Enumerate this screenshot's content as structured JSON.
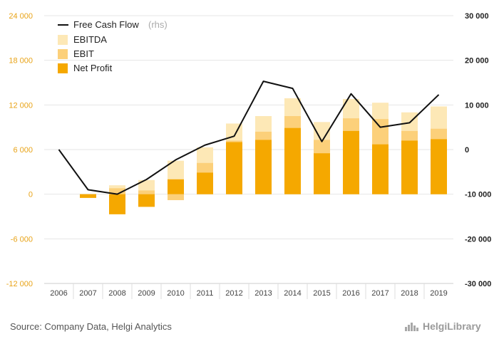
{
  "chart_data": {
    "type": "bar",
    "categories": [
      "2006",
      "2007",
      "2008",
      "2009",
      "2010",
      "2011",
      "2012",
      "2013",
      "2014",
      "2015",
      "2016",
      "2017",
      "2018",
      "2019"
    ],
    "series": [
      {
        "name": "EBITDA",
        "kind": "bar",
        "axis": "left",
        "color": "#fde8b6",
        "values": [
          null,
          -400,
          1200,
          1900,
          4500,
          6300,
          9500,
          10500,
          12900,
          9700,
          12800,
          12300,
          11000,
          11800
        ]
      },
      {
        "name": "EBIT",
        "kind": "bar",
        "axis": "left",
        "color": "#fcd07a",
        "values": [
          null,
          -450,
          800,
          500,
          -800,
          4200,
          7200,
          8400,
          10500,
          7300,
          10200,
          10100,
          8500,
          8800
        ]
      },
      {
        "name": "Net Profit",
        "kind": "bar",
        "axis": "left",
        "color": "#f5a800",
        "values": [
          null,
          -500,
          -2700,
          -1700,
          2000,
          2900,
          7000,
          7300,
          8900,
          5500,
          8500,
          6700,
          7200,
          7400
        ]
      },
      {
        "name": "Free Cash Flow",
        "kind": "line",
        "axis": "right",
        "color": "#111111",
        "values": [
          0,
          -9000,
          -10000,
          -6700,
          -2300,
          1000,
          3000,
          15300,
          13700,
          1800,
          12500,
          5000,
          6000,
          12300
        ]
      }
    ],
    "y_left": {
      "min": -12000,
      "max": 24000,
      "ticks": [
        24000,
        18000,
        12000,
        6000,
        0,
        -6000,
        -12000
      ],
      "tick_labels": [
        "24 000",
        "18 000",
        "12 000",
        "6 000",
        "0",
        "-6 000",
        "-12 000"
      ]
    },
    "y_right": {
      "min": -30000,
      "max": 30000,
      "ticks": [
        30000,
        20000,
        10000,
        0,
        -10000,
        -20000,
        -30000
      ],
      "tick_labels": [
        "30 000",
        "20 000",
        "10 000",
        "0",
        "-10 000",
        "-20 000",
        "-30 000"
      ]
    },
    "legend": {
      "placement": "top-left",
      "line_label": "Free Cash Flow",
      "rhs_note": "(rhs)",
      "items": [
        "EBITDA",
        "EBIT",
        "Net Profit"
      ]
    },
    "grid": true
  },
  "footer": {
    "source": "Source: Company Data, Helgi Analytics",
    "brand": "HelgiLibrary"
  },
  "colors": {
    "left_axis": "#e8a317",
    "grid": "#e6e6e6"
  }
}
